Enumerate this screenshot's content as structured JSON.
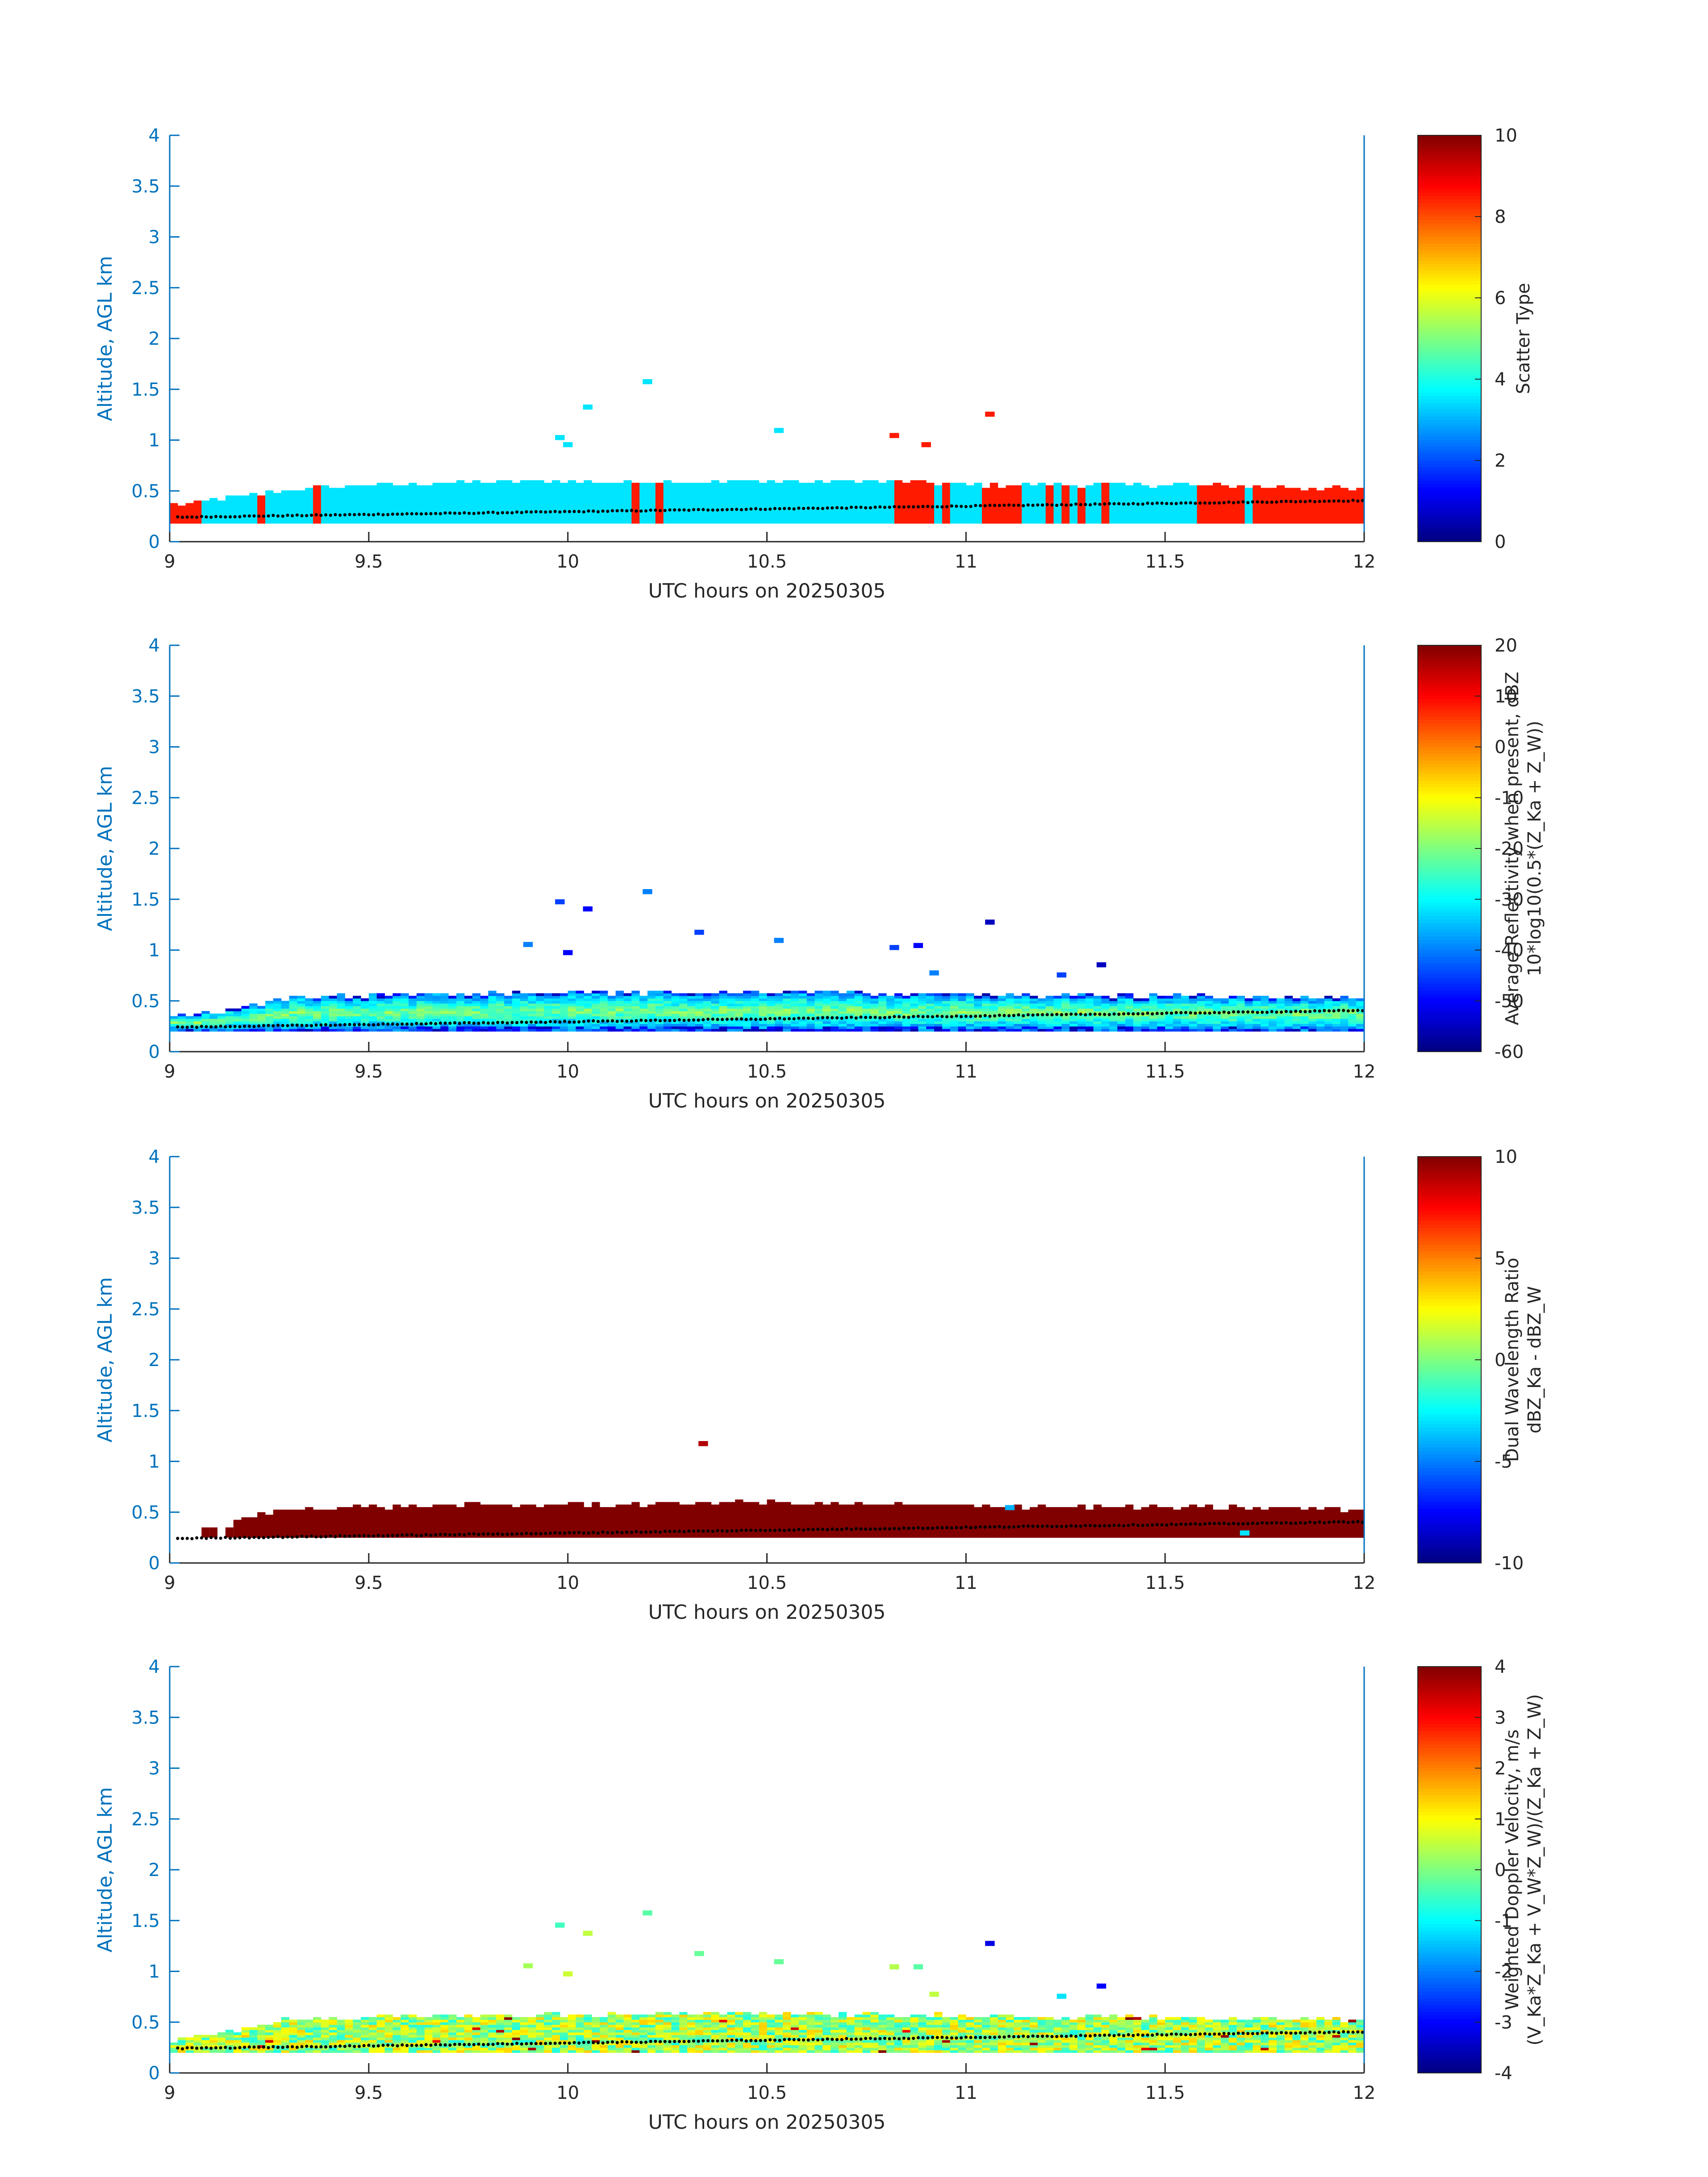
{
  "figure": {
    "xlim": [
      9,
      12
    ],
    "ylim": [
      0,
      4
    ],
    "x_ticks": [
      "9",
      "9.5",
      "10",
      "10.5",
      "11",
      "11.5",
      "12"
    ],
    "y_ticks": [
      "0",
      "0.5",
      "1",
      "1.5",
      "2",
      "2.5",
      "3",
      "3.5",
      "4"
    ],
    "colormap": "jet",
    "axis_color": "#0072BD",
    "ylabel": "Altitude, AGL km",
    "xlabel": "UTC hours on 20250305"
  },
  "chart_data": [
    {
      "type": "heatmap",
      "panel": "scatter-type",
      "xlabel": "UTC hours on 20250305",
      "ylabel": "Altitude, AGL km",
      "xlim": [
        9,
        12
      ],
      "ylim": [
        0,
        4
      ],
      "colorbar": {
        "label_lines": [
          "Scatter Type"
        ],
        "clim": [
          0,
          10
        ],
        "ticks": [
          "0",
          "2",
          "4",
          "6",
          "8",
          "10"
        ]
      },
      "description_values": {
        "low_layer_value": 3.5,
        "alternate_value": 8.5
      },
      "layer_top_km": [
        [
          9.0,
          0.35
        ],
        [
          9.15,
          0.42
        ],
        [
          9.3,
          0.5
        ],
        [
          9.5,
          0.55
        ],
        [
          9.8,
          0.58
        ],
        [
          10.5,
          0.58
        ],
        [
          10.8,
          0.58
        ],
        [
          11.0,
          0.55
        ],
        [
          11.5,
          0.55
        ],
        [
          12.0,
          0.5
        ]
      ],
      "alt_type_intervals_hr": [
        [
          9.0,
          9.07
        ],
        [
          9.2,
          9.22
        ],
        [
          9.34,
          9.36
        ],
        [
          10.15,
          10.17
        ],
        [
          10.2,
          10.22
        ],
        [
          10.8,
          10.9
        ],
        [
          10.92,
          10.94
        ],
        [
          11.02,
          11.13
        ],
        [
          11.19,
          11.21
        ],
        [
          11.22,
          11.24
        ],
        [
          11.27,
          11.29
        ],
        [
          11.32,
          11.34
        ],
        [
          11.57,
          11.69
        ],
        [
          11.71,
          11.94
        ],
        [
          11.95,
          12.0
        ]
      ],
      "isolated_echoes": [
        {
          "x": 10.2,
          "y": 1.55,
          "v": 3.5
        },
        {
          "x": 10.05,
          "y": 1.3,
          "v": 3.5
        },
        {
          "x": 9.98,
          "y": 1.0,
          "v": 3.5
        },
        {
          "x": 10.0,
          "y": 0.93,
          "v": 3.5
        },
        {
          "x": 10.53,
          "y": 1.07,
          "v": 3.5
        },
        {
          "x": 10.82,
          "y": 1.02,
          "v": 8.5
        },
        {
          "x": 10.9,
          "y": 0.93,
          "v": 8.5
        },
        {
          "x": 11.06,
          "y": 1.23,
          "v": 8.5
        }
      ]
    },
    {
      "type": "heatmap",
      "panel": "average-reflectivity",
      "xlabel": "UTC hours on 20250305",
      "ylabel": "Altitude, AGL km",
      "xlim": [
        9,
        12
      ],
      "ylim": [
        0,
        4
      ],
      "colorbar": {
        "label_lines": [
          "Average Reflectivity when present, dBZ",
          "10*log10(0.5*(Z_Ka + Z_W))"
        ],
        "clim": [
          -60,
          20
        ],
        "ticks": [
          "-60",
          "-50",
          "-40",
          "-30",
          "-20",
          "-10",
          "0",
          "10",
          "20"
        ]
      },
      "description_values": {
        "layer_core_dbz": -20,
        "layer_edge_dbz": -45
      },
      "isolated_echoes": [
        {
          "x": 9.98,
          "y": 1.45,
          "v": -45
        },
        {
          "x": 10.05,
          "y": 1.38,
          "v": -50
        },
        {
          "x": 9.9,
          "y": 1.03,
          "v": -40
        },
        {
          "x": 10.0,
          "y": 0.95,
          "v": -50
        },
        {
          "x": 10.2,
          "y": 1.55,
          "v": -40
        },
        {
          "x": 10.33,
          "y": 1.15,
          "v": -45
        },
        {
          "x": 10.53,
          "y": 1.07,
          "v": -40
        },
        {
          "x": 10.82,
          "y": 1.0,
          "v": -45
        },
        {
          "x": 10.88,
          "y": 1.02,
          "v": -50
        },
        {
          "x": 10.92,
          "y": 0.75,
          "v": -40
        },
        {
          "x": 11.06,
          "y": 1.25,
          "v": -55
        },
        {
          "x": 11.24,
          "y": 0.73,
          "v": -45
        },
        {
          "x": 11.34,
          "y": 0.83,
          "v": -55
        }
      ]
    },
    {
      "type": "heatmap",
      "panel": "dual-wavelength-ratio",
      "xlabel": "UTC hours on 20250305",
      "ylabel": "Altitude, AGL km",
      "xlim": [
        9,
        12
      ],
      "ylim": [
        0,
        4
      ],
      "colorbar": {
        "label_lines": [
          "Dual Wavelength Ratio",
          "dBZ_Ka - dBZ_W"
        ],
        "clim": [
          -10,
          10
        ],
        "ticks": [
          "-10",
          "-5",
          "0",
          "5",
          "10"
        ]
      },
      "description_values": {
        "layer_dwr_db": 10
      },
      "isolated_echoes": [
        {
          "x": 10.34,
          "y": 1.15,
          "v": 9
        },
        {
          "x": 11.7,
          "y": 0.27,
          "v": -3
        },
        {
          "x": 11.11,
          "y": 0.52,
          "v": -4
        }
      ]
    },
    {
      "type": "heatmap",
      "panel": "weighted-doppler-velocity",
      "xlabel": "UTC hours on 20250305",
      "ylabel": "Altitude, AGL km",
      "xlim": [
        9,
        12
      ],
      "ylim": [
        0,
        4
      ],
      "colorbar": {
        "label_lines": [
          "Weighted Doppler Velocity, m/s",
          "(V_Ka*Z_Ka + V_W*Z_W)/(Z_Ka + Z_W)"
        ],
        "clim": [
          -4,
          4
        ],
        "ticks": [
          "-4",
          "-3",
          "-2",
          "-1",
          "0",
          "1",
          "2",
          "3",
          "4"
        ]
      },
      "description_values": {
        "layer_velocity_ms": 0.3
      },
      "isolated_echoes": [
        {
          "x": 9.98,
          "y": 1.43,
          "v": -0.5
        },
        {
          "x": 10.05,
          "y": 1.35,
          "v": 0.5
        },
        {
          "x": 9.9,
          "y": 1.03,
          "v": 0.3
        },
        {
          "x": 10.0,
          "y": 0.95,
          "v": 0.6
        },
        {
          "x": 10.2,
          "y": 1.55,
          "v": -0.3
        },
        {
          "x": 10.33,
          "y": 1.15,
          "v": -0.2
        },
        {
          "x": 10.53,
          "y": 1.07,
          "v": -0.2
        },
        {
          "x": 10.82,
          "y": 1.02,
          "v": 0.4
        },
        {
          "x": 10.88,
          "y": 1.02,
          "v": -0.3
        },
        {
          "x": 10.92,
          "y": 0.75,
          "v": 0.5
        },
        {
          "x": 11.06,
          "y": 1.25,
          "v": -3.2
        },
        {
          "x": 11.24,
          "y": 0.73,
          "v": -1.2
        },
        {
          "x": 11.34,
          "y": 0.83,
          "v": -3
        }
      ]
    }
  ]
}
